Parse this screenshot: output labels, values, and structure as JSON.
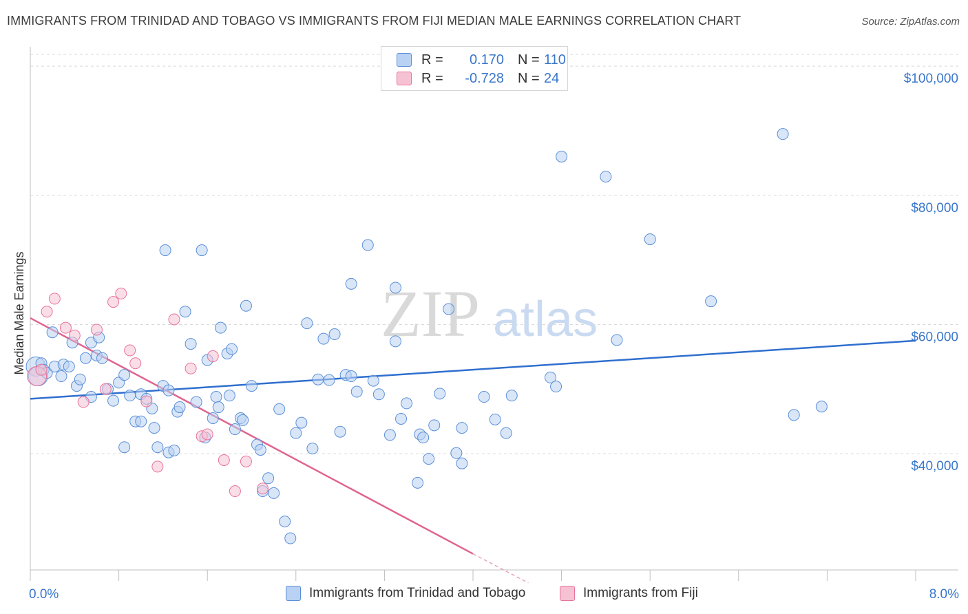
{
  "title": "IMMIGRANTS FROM TRINIDAD AND TOBAGO VS IMMIGRANTS FROM FIJI MEDIAN MALE EARNINGS CORRELATION CHART",
  "source": "Source: ZipAtlas.com",
  "watermark": {
    "zip": "ZIP",
    "atlas": "atlas"
  },
  "legend": {
    "series1": {
      "r_label": "R =",
      "r_value": "0.170",
      "n_label": "N =",
      "n_value": "110"
    },
    "series2": {
      "r_label": "R =",
      "r_value": "-0.728",
      "n_label": "N =",
      "n_value": "24"
    }
  },
  "colors": {
    "blue": "#5b8fd8",
    "blue_fill": "#b9d1f3",
    "pink": "#e8739a",
    "pink_fill": "#f6c2d3",
    "axis_text": "#3a77c9"
  },
  "chart_data": {
    "type": "scatter",
    "title": "IMMIGRANTS FROM TRINIDAD AND TOBAGO VS IMMIGRANTS FROM FIJI MEDIAN MALE EARNINGS CORRELATION CHART",
    "xlabel": "",
    "ylabel": "Median Male Earnings",
    "xlim": [
      0,
      8.0
    ],
    "ylim": [
      22000,
      103000
    ],
    "x_tick_labels": [
      "0.0%",
      "8.0%"
    ],
    "y_ticks": [
      40000,
      60000,
      80000,
      100000
    ],
    "y_tick_labels": [
      "$40,000",
      "$60,000",
      "$80,000",
      "$100,000"
    ],
    "series": [
      {
        "name": "Immigrants from Trinidad and Tobago",
        "color": "#5b8fd8",
        "trend": {
          "x": [
            0,
            8.0
          ],
          "y": [
            48500,
            57500
          ]
        },
        "points": [
          [
            0.05,
            53500
          ],
          [
            0.07,
            52000
          ],
          [
            0.1,
            54000
          ],
          [
            0.12,
            53000
          ],
          [
            0.15,
            52500
          ],
          [
            0.2,
            58800
          ],
          [
            0.22,
            53500
          ],
          [
            0.28,
            52000
          ],
          [
            0.3,
            53800
          ],
          [
            0.35,
            53500
          ],
          [
            0.38,
            57200
          ],
          [
            0.42,
            50500
          ],
          [
            0.45,
            51500
          ],
          [
            0.5,
            54800
          ],
          [
            0.55,
            57200
          ],
          [
            0.6,
            55200
          ],
          [
            0.62,
            58000
          ],
          [
            0.65,
            54800
          ],
          [
            0.7,
            50000
          ],
          [
            0.75,
            48200
          ],
          [
            0.8,
            51000
          ],
          [
            0.85,
            52200
          ],
          [
            0.9,
            49000
          ],
          [
            0.95,
            45000
          ],
          [
            1.0,
            49200
          ],
          [
            1.05,
            48500
          ],
          [
            1.1,
            47000
          ],
          [
            1.12,
            44000
          ],
          [
            1.15,
            41000
          ],
          [
            1.2,
            50500
          ],
          [
            1.22,
            71500
          ],
          [
            1.25,
            40200
          ],
          [
            1.3,
            40500
          ],
          [
            1.33,
            46500
          ],
          [
            1.35,
            47200
          ],
          [
            1.4,
            62000
          ],
          [
            1.45,
            57000
          ],
          [
            1.5,
            48000
          ],
          [
            1.55,
            71500
          ],
          [
            1.58,
            42500
          ],
          [
            1.6,
            54500
          ],
          [
            1.65,
            45500
          ],
          [
            1.68,
            48800
          ],
          [
            1.7,
            47200
          ],
          [
            1.72,
            59500
          ],
          [
            1.78,
            55500
          ],
          [
            1.82,
            56200
          ],
          [
            1.85,
            43800
          ],
          [
            1.9,
            45500
          ],
          [
            1.92,
            45200
          ],
          [
            1.95,
            62900
          ],
          [
            2.0,
            50500
          ],
          [
            2.05,
            41400
          ],
          [
            2.08,
            40600
          ],
          [
            2.1,
            34200
          ],
          [
            2.15,
            36200
          ],
          [
            2.2,
            33900
          ],
          [
            2.25,
            46900
          ],
          [
            2.3,
            29500
          ],
          [
            2.35,
            26900
          ],
          [
            2.4,
            43200
          ],
          [
            2.5,
            60200
          ],
          [
            2.55,
            40800
          ],
          [
            2.6,
            51500
          ],
          [
            2.65,
            57800
          ],
          [
            2.7,
            51400
          ],
          [
            2.75,
            58500
          ],
          [
            2.8,
            43400
          ],
          [
            2.85,
            52200
          ],
          [
            2.9,
            66300
          ],
          [
            2.95,
            49600
          ],
          [
            3.05,
            72300
          ],
          [
            3.15,
            49200
          ],
          [
            3.25,
            42900
          ],
          [
            3.3,
            65700
          ],
          [
            3.35,
            45400
          ],
          [
            3.4,
            47800
          ],
          [
            3.5,
            35500
          ],
          [
            3.52,
            43000
          ],
          [
            3.55,
            42500
          ],
          [
            3.6,
            39200
          ],
          [
            3.65,
            44400
          ],
          [
            3.7,
            49300
          ],
          [
            3.78,
            62400
          ],
          [
            3.85,
            40100
          ],
          [
            3.9,
            44000
          ],
          [
            4.1,
            48800
          ],
          [
            4.2,
            45300
          ],
          [
            4.3,
            43200
          ],
          [
            4.7,
            51800
          ],
          [
            4.75,
            50400
          ],
          [
            4.8,
            86000
          ],
          [
            5.2,
            82900
          ],
          [
            5.3,
            57600
          ],
          [
            5.6,
            73200
          ],
          [
            6.15,
            63600
          ],
          [
            6.8,
            89500
          ],
          [
            6.9,
            46000
          ],
          [
            7.15,
            47300
          ],
          [
            0.55,
            48800
          ],
          [
            0.85,
            41000
          ],
          [
            1.0,
            45000
          ],
          [
            1.25,
            49800
          ],
          [
            1.8,
            49000
          ],
          [
            2.45,
            44800
          ],
          [
            2.9,
            52000
          ],
          [
            3.1,
            51300
          ],
          [
            3.3,
            57400
          ],
          [
            3.9,
            38500
          ],
          [
            4.35,
            49000
          ]
        ]
      },
      {
        "name": "Immigrants from Fiji",
        "color": "#e8739a",
        "trend": {
          "x": [
            0,
            4.0
          ],
          "y": [
            61000,
            24500
          ]
        },
        "trend_dashed": {
          "x": [
            4.0,
            4.5
          ],
          "y": [
            24500,
            20000
          ]
        },
        "points": [
          [
            0.06,
            52000
          ],
          [
            0.1,
            53000
          ],
          [
            0.15,
            62000
          ],
          [
            0.22,
            64000
          ],
          [
            0.32,
            59500
          ],
          [
            0.4,
            58300
          ],
          [
            0.48,
            48000
          ],
          [
            0.6,
            59200
          ],
          [
            0.68,
            50000
          ],
          [
            0.75,
            63500
          ],
          [
            0.82,
            64800
          ],
          [
            0.9,
            56000
          ],
          [
            0.95,
            54000
          ],
          [
            1.05,
            48100
          ],
          [
            1.15,
            38000
          ],
          [
            1.3,
            60800
          ],
          [
            1.45,
            53200
          ],
          [
            1.55,
            42700
          ],
          [
            1.6,
            43000
          ],
          [
            1.65,
            55100
          ],
          [
            1.75,
            39000
          ],
          [
            1.85,
            34200
          ],
          [
            1.95,
            38800
          ],
          [
            2.1,
            34600
          ]
        ]
      }
    ]
  },
  "bottom_legend": {
    "series1": "Immigrants from Trinidad and Tobago",
    "series2": "Immigrants from Fiji"
  }
}
